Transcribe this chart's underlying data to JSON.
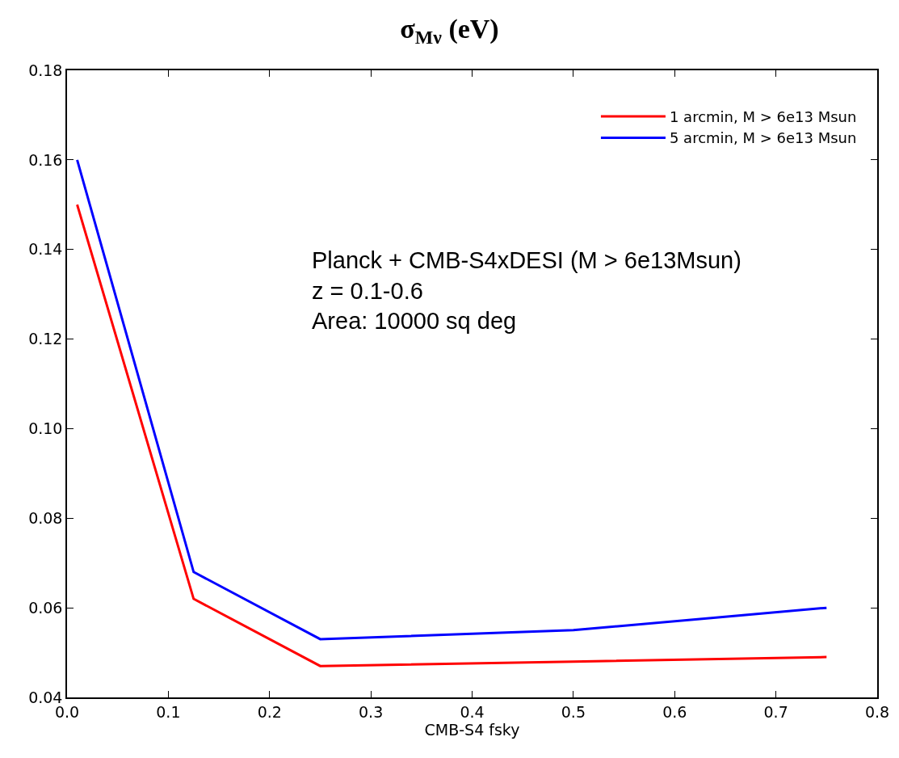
{
  "chart_data": {
    "type": "line",
    "title": "σ$_{Mν}$ (eV)",
    "xlabel": "CMB-S4 fsky",
    "x": [
      0.01,
      0.125,
      0.25,
      0.5,
      0.75
    ],
    "series": [
      {
        "name": "1 arcmin, M > 6e13 Msun",
        "color": "#ff0000",
        "values": [
          0.15,
          0.062,
          0.047,
          0.048,
          0.049
        ]
      },
      {
        "name": "5 arcmin, M > 6e13 Msun",
        "color": "#0000ff",
        "values": [
          0.16,
          0.068,
          0.053,
          0.055,
          0.06
        ]
      }
    ],
    "xlim": [
      0,
      0.8
    ],
    "xticks": [
      {
        "value": 0,
        "label": "0.0"
      },
      0.1,
      0.2,
      0.3,
      0.4,
      0.5,
      0.6,
      0.7,
      0.8
    ],
    "ylim": [
      0.04,
      0.18
    ],
    "yticks": [
      0.04,
      0.06,
      0.08,
      {
        "value": 0.1,
        "label": "0.10"
      },
      0.12,
      0.14,
      0.16,
      0.18
    ],
    "annotations": [
      "Planck + CMB-S4xDESI (M > 6e13Msun)\nz = 0.1-0.6\nArea: 10000 sq deg"
    ],
    "legend": "top right",
    "marker": "none",
    "line_style": "solid"
  }
}
